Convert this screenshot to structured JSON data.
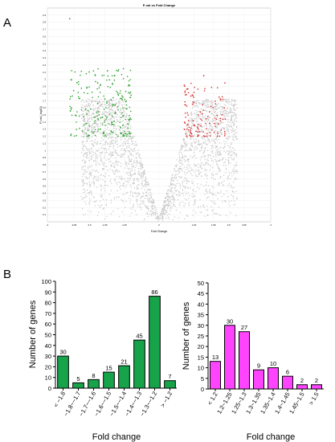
{
  "panels": [
    {
      "label": "A"
    },
    {
      "label": "B"
    }
  ],
  "chart_data": [
    {
      "type": "scatter",
      "title": "P-val vs Fold Change",
      "xlabel": "Fold Change",
      "ylabel": "P-val (-log10)",
      "xlim": [
        -4,
        4
      ],
      "ylim": [
        0,
        3
      ],
      "x_ticks": [
        "-4",
        "-3.05",
        "-2.5",
        "-1.95",
        "-1.25",
        "0",
        "1.25",
        "1.95",
        "2.5",
        "3.05",
        "4"
      ],
      "y_ticks": [
        "0.1",
        "0.2",
        "0.3",
        "0.4",
        "0.5",
        "0.6",
        "0.7",
        "0.8",
        "0.9",
        "1",
        "1.1",
        "1.2",
        "1.3",
        "1.4",
        "1.5",
        "1.6",
        "1.7",
        "1.8",
        "1.9",
        "2",
        "2.1",
        "2.2",
        "2.3",
        "2.4",
        "2.5",
        "2.6",
        "2.7",
        "2.8",
        "2.9"
      ],
      "grid": true,
      "series": [
        {
          "color": "#c8c8c8",
          "region": "background",
          "count_estimate": 2500
        },
        {
          "color": "#2ca02c",
          "region": "down-regulated",
          "points_sample": [
            [
              -3.2,
              2.85
            ],
            [
              -2.2,
              1.95
            ],
            [
              -1.6,
              2.05
            ],
            [
              -1.3,
              1.75
            ]
          ]
        },
        {
          "color": "#d62728",
          "region": "up-regulated",
          "points_sample": [
            [
              1.6,
              2.05
            ],
            [
              1.2,
              1.65
            ],
            [
              1.4,
              1.5
            ],
            [
              2.2,
              1.45
            ]
          ]
        }
      ]
    },
    {
      "type": "bar",
      "categories": [
        "< −1.8",
        "−1.8~−1.7",
        "−1.7~−1.6",
        "−1.6~−1.5",
        "−1.5~−1.4",
        "−1.4~−1.3",
        "−1.3~−1.2",
        "> −1.2"
      ],
      "values": [
        30,
        5,
        8,
        15,
        21,
        45,
        86,
        7
      ],
      "xlabel": "Fold change",
      "ylabel": "Number of genes",
      "ylim": [
        0,
        100
      ],
      "y_ticks": [
        0,
        10,
        20,
        30,
        40,
        50,
        60,
        70,
        80,
        90,
        100
      ],
      "color": "#16a34a"
    },
    {
      "type": "bar",
      "categories": [
        "< 1.2",
        "1.2~1.25",
        "1.25~1.3",
        "1.3~1.35",
        "1.35~1.4",
        "1.4~1.45",
        "1.45~1.5",
        "> 1.5"
      ],
      "values": [
        13,
        30,
        27,
        9,
        10,
        6,
        2,
        2
      ],
      "xlabel": "Fold change",
      "ylabel": "Number of genes",
      "ylim": [
        0,
        50
      ],
      "y_ticks": [
        0,
        5,
        10,
        15,
        20,
        25,
        30,
        35,
        40,
        45,
        50
      ],
      "color": "#ff44ff"
    }
  ]
}
